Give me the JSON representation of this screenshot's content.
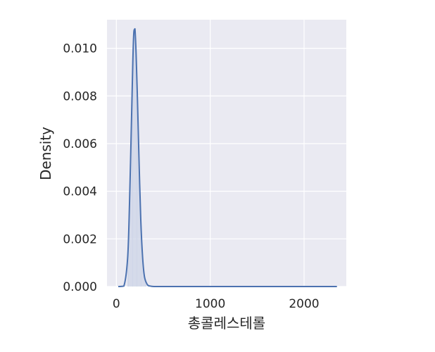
{
  "chart_data": {
    "type": "area",
    "xlabel": "총콜레스테롤",
    "ylabel": "Density",
    "xlim": [
      -100,
      2450
    ],
    "ylim": [
      0,
      0.0112
    ],
    "x_ticks": [
      0,
      1000,
      2000
    ],
    "x_tick_labels": [
      "0",
      "1000",
      "2000"
    ],
    "y_ticks": [
      0.0,
      0.002,
      0.004,
      0.006,
      0.008,
      0.01
    ],
    "y_tick_labels": [
      "0.000",
      "0.002",
      "0.004",
      "0.006",
      "0.008",
      "0.010"
    ],
    "grid": true,
    "series": [
      {
        "x": [
          20,
          80,
          120,
          140,
          160,
          175,
          185,
          195,
          200,
          210,
          225,
          240,
          260,
          280,
          300,
          330,
          360,
          400,
          500,
          800,
          1200,
          1600,
          2000,
          2350
        ],
        "values": [
          0.0,
          2e-05,
          0.0012,
          0.0035,
          0.0068,
          0.0094,
          0.0106,
          0.0108,
          0.0107,
          0.0098,
          0.0078,
          0.0055,
          0.0028,
          0.0012,
          0.0004,
          8e-05,
          2e-05,
          0.0,
          0.0,
          0.0,
          0.0,
          0.0,
          0.0,
          0.0
        ]
      }
    ]
  },
  "colors": {
    "background": "#eaeaf2",
    "grid": "#ffffff",
    "line": "#4c72b0",
    "fill": "#cfd6e8"
  }
}
